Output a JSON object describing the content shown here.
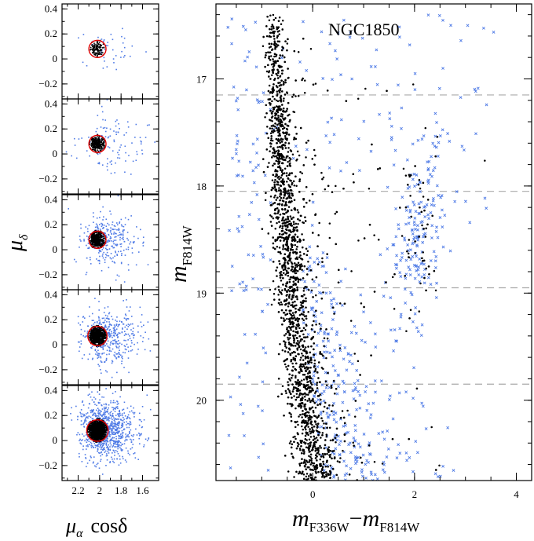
{
  "chart_data": [
    {
      "type": "scatter",
      "name": "pm-panel-1",
      "xlim": [
        2.35,
        1.45
      ],
      "ylim": [
        -0.32,
        0.44
      ],
      "x_ticks": [
        2.2,
        2.0,
        1.8,
        1.6
      ],
      "x_tick_labels": [
        "2.2",
        "2",
        "1.8",
        "1.6"
      ],
      "y_ticks": [
        -0.2,
        0,
        0.2,
        0.4
      ],
      "y_tick_labels": [
        "−0.2",
        "0",
        "0.2",
        "0.4"
      ],
      "selection_circle": {
        "cx": 2.02,
        "cy": 0.08,
        "r": 0.08,
        "color": "#e00000"
      },
      "members_n": 120,
      "field_n": 40,
      "member_spread": 0.035,
      "field_spread": [
        0.22,
        0.09
      ]
    },
    {
      "type": "scatter",
      "name": "pm-panel-2",
      "xlim": [
        2.35,
        1.45
      ],
      "ylim": [
        -0.32,
        0.44
      ],
      "x_ticks": [
        2.2,
        2.0,
        1.8,
        1.6
      ],
      "x_tick_labels": [
        "2.2",
        "2",
        "1.8",
        "1.6"
      ],
      "y_ticks": [
        -0.2,
        0,
        0.2,
        0.4
      ],
      "y_tick_labels": [
        "−0.2",
        "0",
        "0.2",
        "0.4"
      ],
      "selection_circle": {
        "cx": 2.02,
        "cy": 0.08,
        "r": 0.08,
        "color": "#e00000"
      },
      "members_n": 300,
      "field_n": 110,
      "member_spread": 0.035,
      "field_spread": [
        0.2,
        0.11
      ]
    },
    {
      "type": "scatter",
      "name": "pm-panel-3",
      "xlim": [
        2.35,
        1.45
      ],
      "ylim": [
        -0.32,
        0.44
      ],
      "x_ticks": [
        2.2,
        2.0,
        1.8,
        1.6
      ],
      "x_tick_labels": [
        "2.2",
        "2",
        "1.8",
        "1.6"
      ],
      "y_ticks": [
        -0.2,
        0,
        0.2,
        0.4
      ],
      "y_tick_labels": [
        "−0.2",
        "0",
        "0.2",
        "0.4"
      ],
      "selection_circle": {
        "cx": 2.02,
        "cy": 0.08,
        "r": 0.08,
        "color": "#e00000"
      },
      "members_n": 500,
      "field_n": 300,
      "member_spread": 0.035,
      "field_spread": [
        0.18,
        0.1
      ]
    },
    {
      "type": "scatter",
      "name": "pm-panel-4",
      "xlim": [
        2.35,
        1.45
      ],
      "ylim": [
        -0.32,
        0.44
      ],
      "x_ticks": [
        2.2,
        2.0,
        1.8,
        1.6
      ],
      "x_tick_labels": [
        "2.2",
        "2",
        "1.8",
        "1.6"
      ],
      "y_ticks": [
        -0.2,
        0,
        0.2,
        0.4
      ],
      "y_tick_labels": [
        "−0.2",
        "0",
        "0.2",
        "0.4"
      ],
      "selection_circle": {
        "cx": 2.02,
        "cy": 0.07,
        "r": 0.09,
        "color": "#e00000"
      },
      "members_n": 800,
      "field_n": 450,
      "member_spread": 0.04,
      "field_spread": [
        0.18,
        0.11
      ]
    },
    {
      "type": "scatter",
      "name": "pm-panel-5",
      "xlim": [
        2.35,
        1.45
      ],
      "ylim": [
        -0.32,
        0.44
      ],
      "x_ticks": [
        2.2,
        2.0,
        1.8,
        1.6
      ],
      "x_tick_labels": [
        "2.2",
        "2",
        "1.8",
        "1.6"
      ],
      "y_ticks": [
        -0.2,
        0,
        0.2,
        0.4
      ],
      "y_tick_labels": [
        "−0.2",
        "0",
        "0.2",
        "0.4"
      ],
      "selection_circle": {
        "cx": 2.02,
        "cy": 0.08,
        "r": 0.1,
        "color": "#e00000"
      },
      "members_n": 1300,
      "field_n": 900,
      "member_spread": 0.045,
      "field_spread": [
        0.17,
        0.12
      ]
    },
    {
      "type": "scatter",
      "name": "cmd",
      "title": "NGC1850",
      "xlim": [
        -1.9,
        4.3
      ],
      "ylim": [
        20.75,
        16.3
      ],
      "y_inverted": true,
      "x_ticks": [
        0,
        2,
        4
      ],
      "x_tick_labels": [
        "0",
        "2",
        "4"
      ],
      "y_ticks": [
        17,
        18,
        19,
        20
      ],
      "y_tick_labels": [
        "17",
        "18",
        "19",
        "20"
      ],
      "dashed_lines_y": [
        17.15,
        18.05,
        18.95,
        19.85
      ],
      "main_sequence_ridge": {
        "x": [
          -0.78,
          -0.7,
          -0.6,
          -0.5,
          -0.35,
          -0.2,
          -0.05,
          0.1
        ],
        "y": [
          16.4,
          17.2,
          17.9,
          18.5,
          19.2,
          19.8,
          20.3,
          20.75
        ]
      },
      "members_n": 3200,
      "field_n": 650,
      "red_clump": {
        "x": 2.05,
        "y": 18.45
      },
      "series": [
        {
          "name": "cluster members",
          "color": "#000000",
          "marker": "dot"
        },
        {
          "name": "field stars",
          "color": "#4f7be6",
          "marker": "x"
        }
      ]
    }
  ],
  "labels": {
    "pm_xlabel_main": "μ",
    "pm_xlabel_sub": "α",
    "pm_xlabel_rest": "cosδ",
    "pm_ylabel_main": "μ",
    "pm_ylabel_sub": "δ",
    "cmd_ylabel_main": "m",
    "cmd_ylabel_sub": "F814W",
    "cmd_xlabel_main1": "m",
    "cmd_xlabel_sub1": "F336W",
    "cmd_xlabel_minus": "−",
    "cmd_xlabel_main2": "m",
    "cmd_xlabel_sub2": "F814W"
  },
  "colors": {
    "member": "#000000",
    "field": "#4f7be6",
    "circle": "#e00000",
    "dashed": "#aaaaaa"
  }
}
